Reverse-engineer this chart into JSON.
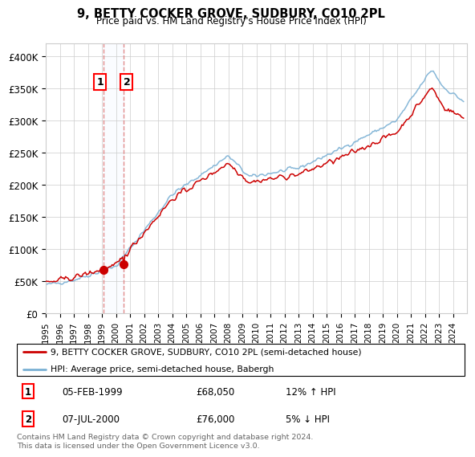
{
  "title": "9, BETTY COCKER GROVE, SUDBURY, CO10 2PL",
  "subtitle": "Price paid vs. HM Land Registry's House Price Index (HPI)",
  "legend_line1": "9, BETTY COCKER GROVE, SUDBURY, CO10 2PL (semi-detached house)",
  "legend_line2": "HPI: Average price, semi-detached house, Babergh",
  "sale1_date": "05-FEB-1999",
  "sale1_price": 68050,
  "sale1_hpi_pct": "12% ↑ HPI",
  "sale2_date": "07-JUL-2000",
  "sale2_price": 76000,
  "sale2_hpi_pct": "5% ↓ HPI",
  "footer": "Contains HM Land Registry data © Crown copyright and database right 2024.\nThis data is licensed under the Open Government Licence v3.0.",
  "red_color": "#cc0000",
  "blue_color": "#7ab0d4",
  "vline_color": "#e08080",
  "span_color": "#ddeeff",
  "dot_color": "#cc0000",
  "ylim": [
    0,
    420000
  ],
  "yticks": [
    0,
    50000,
    100000,
    150000,
    200000,
    250000,
    300000,
    350000,
    400000
  ],
  "ytick_labels": [
    "£0",
    "£50K",
    "£100K",
    "£150K",
    "£200K",
    "£250K",
    "£300K",
    "£350K",
    "£400K"
  ],
  "sale1_x": 1999.09,
  "sale2_x": 2000.54
}
